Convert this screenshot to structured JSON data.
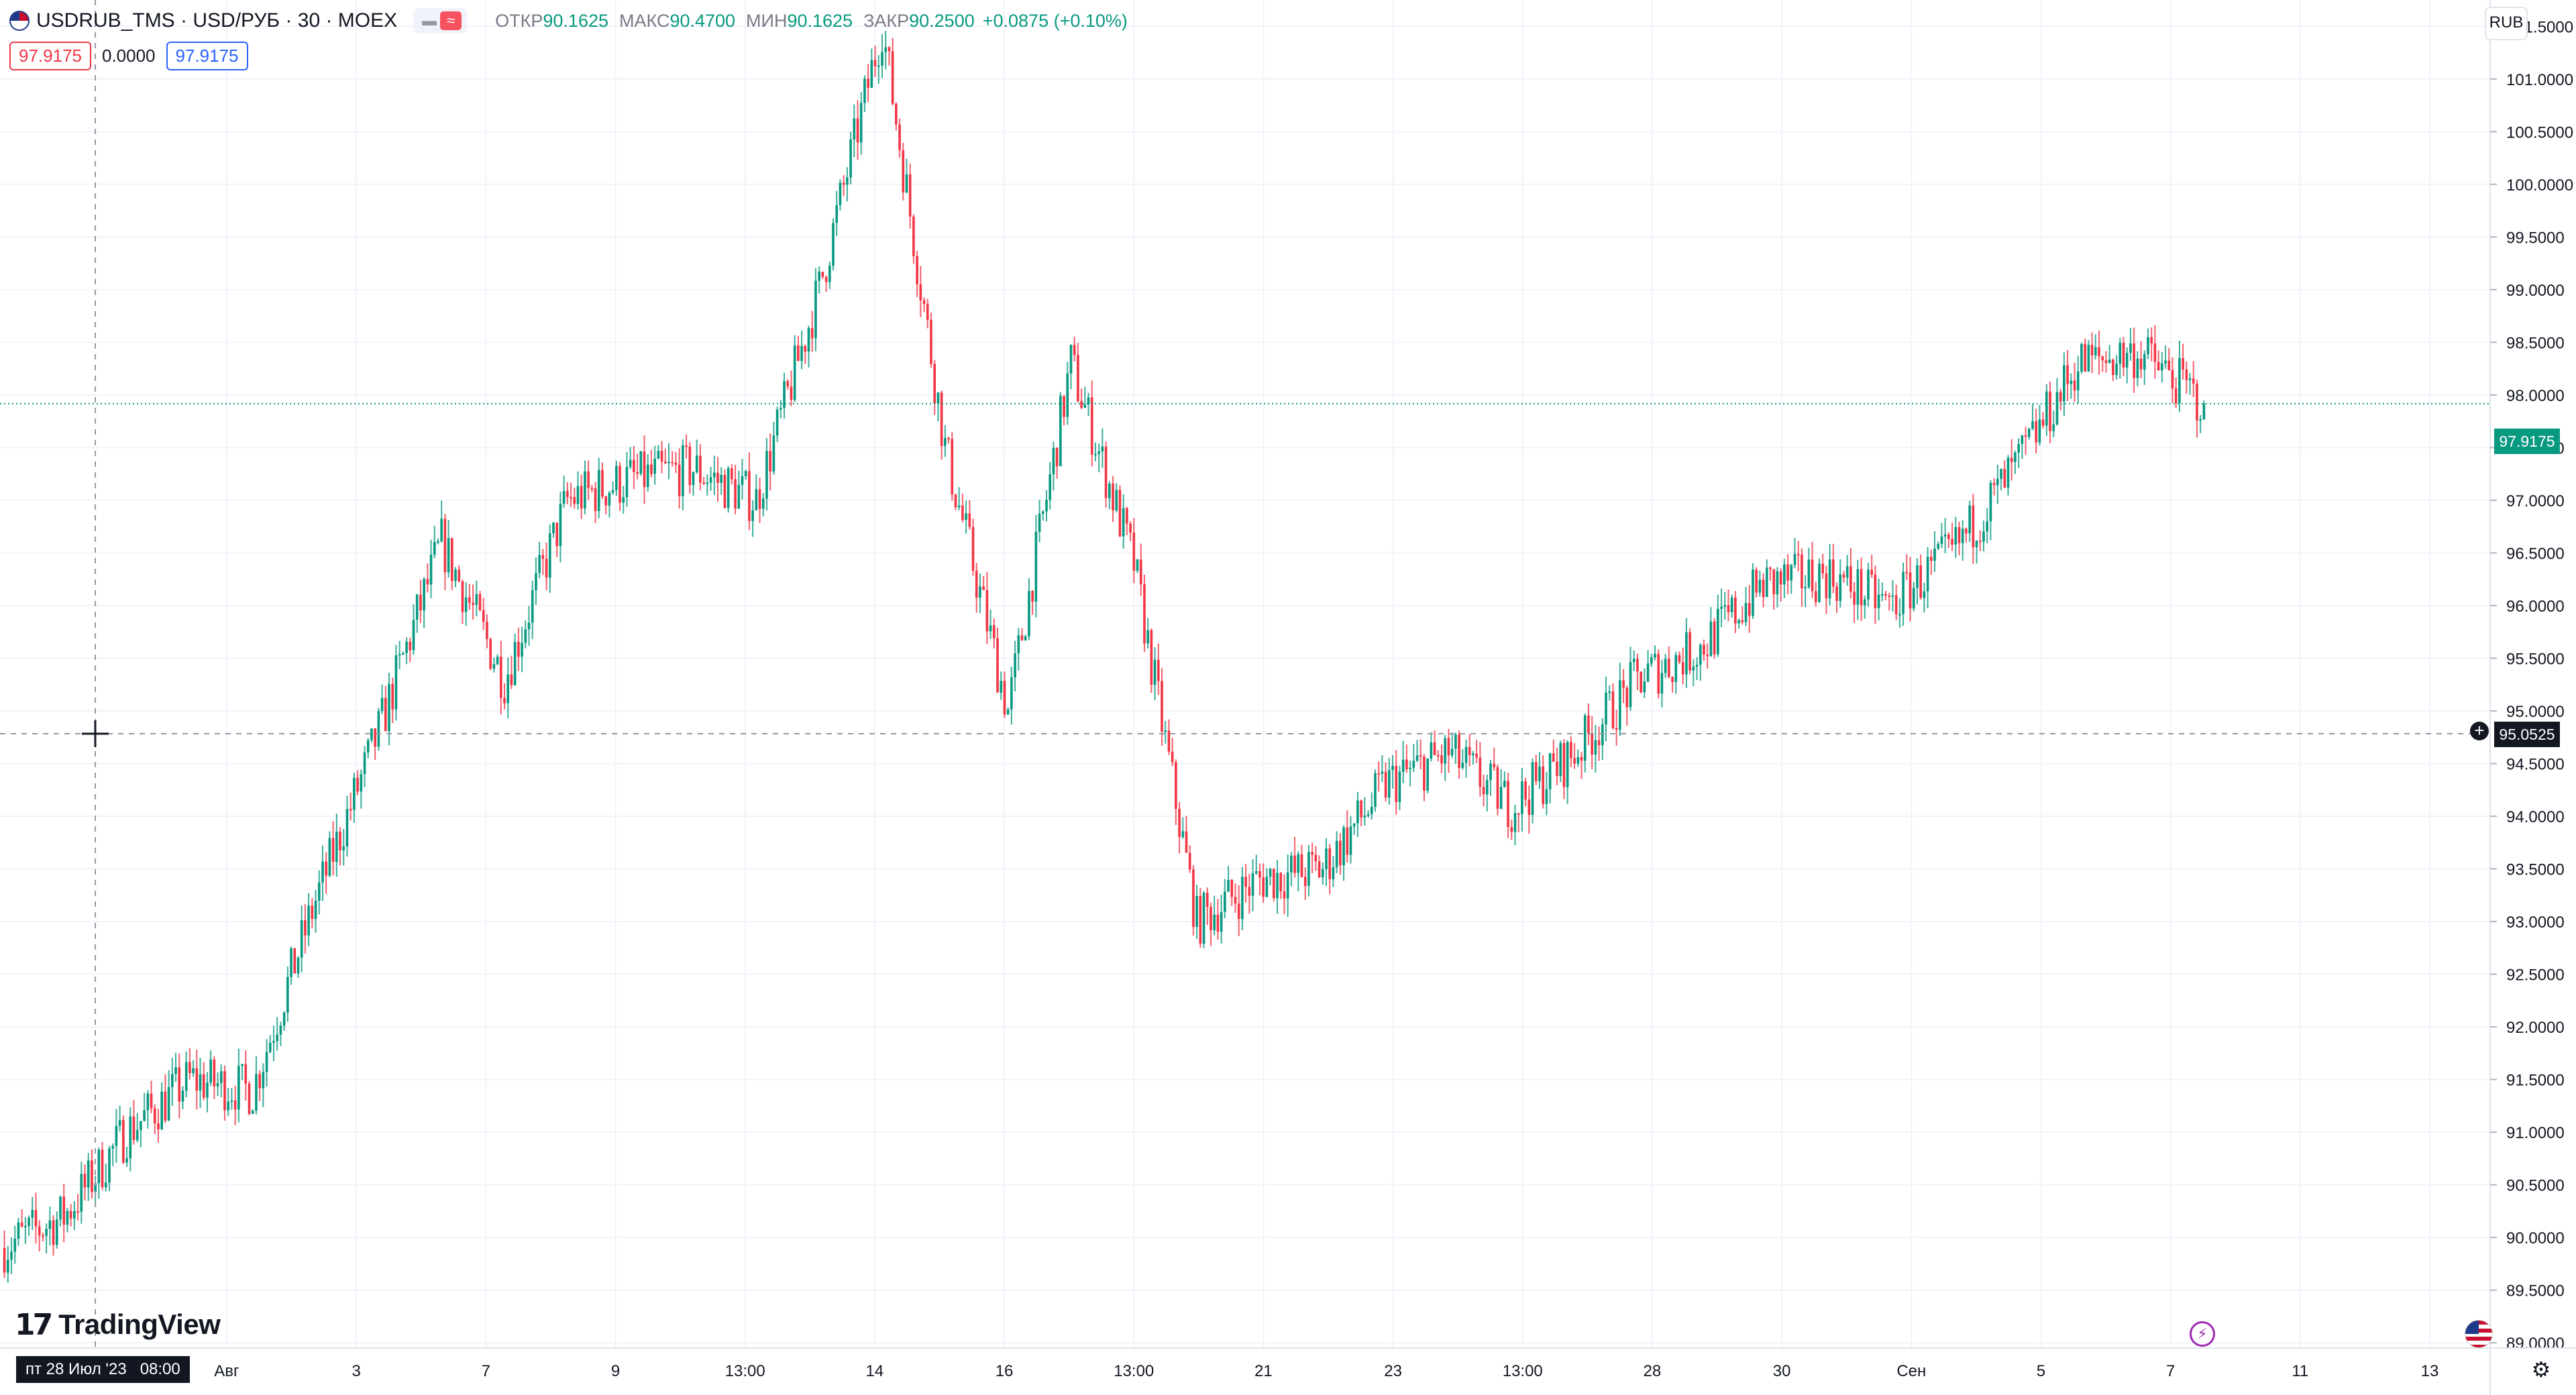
{
  "header": {
    "symbol": "USDRUB_TMS · USD/РУБ · 30 · MOEX",
    "ohlc": [
      {
        "label": "ОТКР",
        "value": "90.1625"
      },
      {
        "label": "МАКС",
        "value": "90.4700"
      },
      {
        "label": "МИН",
        "value": "90.1625"
      },
      {
        "label": "ЗАКР",
        "value": "90.2500"
      }
    ],
    "change": "+0.0875 (+0.10%)",
    "sell_price": "97.9175",
    "spread": "0.0000",
    "buy_price": "97.9175",
    "currency_button": "RUB"
  },
  "branding": {
    "logo_text": "TradingView"
  },
  "crosshair": {
    "time_label": "пт 28 Июл '23   08:00",
    "price_label": "95.0525"
  },
  "last_price_label": "97.9175",
  "colors": {
    "up": "#089981",
    "down": "#f23645",
    "grid": "#f0f3fa",
    "crosshair": "#9598a1"
  },
  "icons": {
    "settings": "gear-icon",
    "add": "plus-circle-icon",
    "events": "lightning-icon"
  },
  "chart_data": {
    "type": "candlestick",
    "title": "USDRUB_TMS · USD/РУБ · 30 · MOEX",
    "ylim": [
      88.95,
      101.75
    ],
    "y_ticks": [
      "89.0000",
      "89.5000",
      "90.0000",
      "90.5000",
      "91.0000",
      "91.5000",
      "92.0000",
      "92.5000",
      "93.0000",
      "93.5000",
      "94.0000",
      "94.5000",
      "95.0000",
      "95.5000",
      "96.0000",
      "96.5000",
      "97.0000",
      "97.5000",
      "98.0000",
      "98.5000",
      "99.0000",
      "99.5000",
      "100.0000",
      "100.5000",
      "101.0000",
      "101.5000"
    ],
    "x_ticks": [
      "Авг",
      "3",
      "7",
      "9",
      "13:00",
      "14",
      "16",
      "13:00",
      "21",
      "23",
      "13:00",
      "28",
      "30",
      "Сен",
      "5",
      "7",
      "11",
      "13"
    ],
    "last_price": 97.9175,
    "close_path": [
      [
        "28 Jul",
        89.9
      ],
      [
        "29 Jul",
        90.2
      ],
      [
        "31 Jul",
        91.0
      ],
      [
        "1 Aug",
        91.5
      ],
      [
        "2 Aug",
        91.4
      ],
      [
        "3 Aug",
        93.2
      ],
      [
        "4 Aug",
        94.8
      ],
      [
        "7 Aug",
        96.6
      ],
      [
        "8 Aug",
        95.3
      ],
      [
        "9 Aug",
        97.0
      ],
      [
        "10 Aug",
        97.2
      ],
      [
        "11 Aug",
        97.3
      ],
      [
        "13:00",
        97.0
      ],
      [
        "14 Aug",
        99.0
      ],
      [
        "14 Aug 13:00",
        101.5
      ],
      [
        "15 Aug",
        97.5
      ],
      [
        "15 Aug 13:00",
        95.0
      ],
      [
        "16 Aug",
        98.3
      ],
      [
        "16 Aug 13:00",
        96.4
      ],
      [
        "17 Aug",
        93.0
      ],
      [
        "18 Aug",
        93.4
      ],
      [
        "21 Aug",
        93.5
      ],
      [
        "22 Aug",
        94.3
      ],
      [
        "23 Aug",
        94.6
      ],
      [
        "24 Aug",
        94.1
      ],
      [
        "25 Aug",
        94.6
      ],
      [
        "28 Aug",
        95.3
      ],
      [
        "29 Aug",
        95.6
      ],
      [
        "30 Aug",
        96.2
      ],
      [
        "31 Aug",
        96.3
      ],
      [
        "1 Sep",
        96.0
      ],
      [
        "4 Sep",
        96.5
      ],
      [
        "5 Sep",
        97.3
      ],
      [
        "6 Sep",
        98.3
      ],
      [
        "7 Sep",
        98.4
      ],
      [
        "8 Sep",
        97.9175
      ]
    ]
  }
}
